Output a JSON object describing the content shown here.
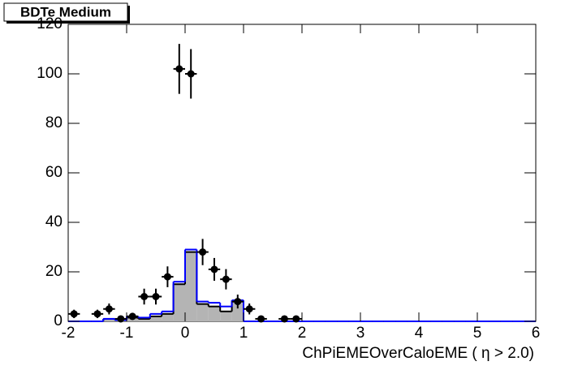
{
  "chart_data": {
    "type": "histogram",
    "title": "BDTe Medium",
    "x_label": "ChPiEMEOverCaloEME (  η > 2.0)",
    "xlim": [
      -2,
      6
    ],
    "xticks": [
      -2,
      -1,
      0,
      1,
      2,
      3,
      4,
      5,
      6
    ],
    "ylim": [
      0,
      120
    ],
    "yticks": [
      0,
      20,
      40,
      60,
      80,
      100,
      120
    ],
    "bins": [
      -2,
      -1.8,
      -1.6,
      -1.4,
      -1.2,
      -1,
      -0.8,
      -0.6,
      -0.4,
      -0.2,
      0,
      0.2,
      0.4,
      0.6,
      0.8,
      1,
      1.2,
      1.4,
      1.6,
      1.8,
      2,
      2.2,
      2.4,
      2.6,
      2.8,
      3,
      3.2,
      3.4,
      3.6,
      3.8,
      4,
      4.2,
      4.4,
      4.6,
      4.8,
      5,
      5.2,
      5.4,
      5.6,
      5.8,
      6
    ],
    "series": [
      {
        "style": "filled",
        "color": "#b4b4b4",
        "outline": "#000000",
        "values": [
          0,
          0,
          0,
          1,
          0.5,
          1.5,
          1,
          2,
          3,
          15,
          28,
          7,
          6,
          4,
          8,
          0,
          0,
          0,
          0,
          0,
          0,
          0,
          0,
          0,
          0,
          0,
          0,
          0,
          0,
          0,
          0,
          0,
          0,
          0,
          0,
          0,
          0,
          0,
          0,
          0
        ]
      },
      {
        "style": "step",
        "color": "#0000ff",
        "values": [
          0,
          0,
          0,
          1,
          0.5,
          2,
          1.5,
          3,
          4,
          16,
          29,
          8,
          7.5,
          6,
          8.5,
          0,
          0,
          0,
          0,
          0,
          0,
          0,
          0,
          0,
          0,
          0,
          0,
          0,
          0,
          0,
          0,
          0,
          0,
          0,
          0,
          0,
          0,
          0,
          0,
          0
        ]
      }
    ],
    "points": {
      "color": "#000000",
      "x": [
        -1.9,
        -1.5,
        -1.3,
        -1.1,
        -0.9,
        -0.7,
        -0.5,
        -0.3,
        -0.1,
        0.1,
        0.3,
        0.5,
        0.7,
        0.9,
        1.1,
        1.3,
        1.7,
        1.9
      ],
      "values": [
        3,
        3,
        5,
        1,
        2,
        10,
        10,
        18,
        102,
        100,
        28,
        21,
        17,
        8,
        5,
        1,
        1,
        1
      ],
      "errors": [
        1.7,
        1.7,
        2.2,
        1,
        1.4,
        3.2,
        3.2,
        4.2,
        10.1,
        10,
        5.3,
        4.6,
        4.1,
        2.8,
        2.2,
        1,
        1,
        1
      ],
      "x_error": 0.1
    }
  }
}
